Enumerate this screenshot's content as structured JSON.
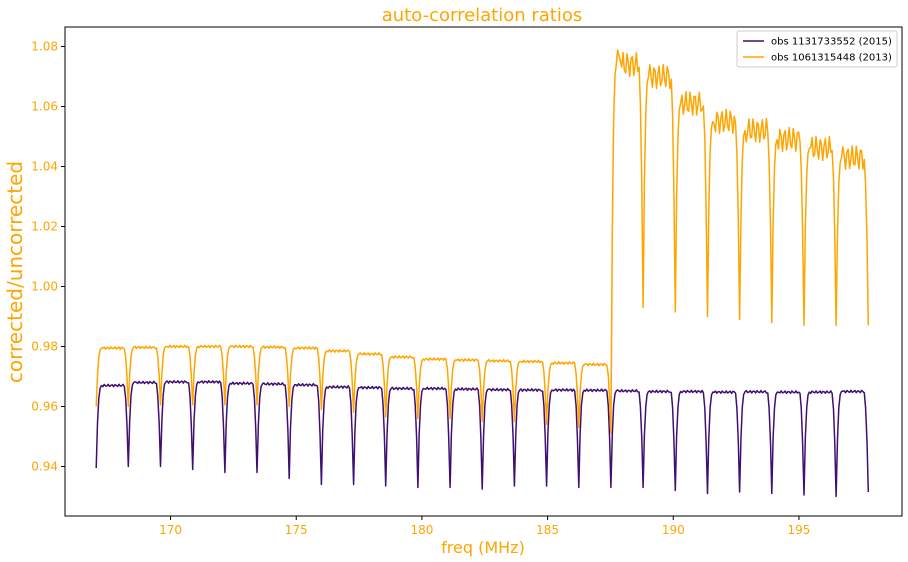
{
  "chart_data": {
    "type": "line",
    "title": "auto-correlation ratios",
    "xlabel": "freq (MHz)",
    "ylabel": "corrected/uncorrected",
    "xlim": [
      165.8,
      199.1
    ],
    "ylim": [
      0.9235,
      1.0865
    ],
    "xticks": [
      170,
      175,
      180,
      185,
      190,
      195
    ],
    "yticks": [
      0.94,
      0.96,
      0.98,
      1.0,
      1.02,
      1.04,
      1.06,
      1.08
    ],
    "ytick_labels": [
      "0.94",
      "0.96",
      "0.98",
      "1.00",
      "1.02",
      "1.04",
      "1.06",
      "1.08"
    ],
    "grid": false,
    "legend_position": "top-right",
    "colors": {
      "text": "#ffa500",
      "axes": "#000000"
    },
    "coarse_channel_width_mhz": 1.28,
    "first_coarse_channel_start_mhz": 167.04,
    "last_freq_mhz": 197.76,
    "series": [
      {
        "name": "obs 1131733552 (2015)",
        "color": "#3f0f72",
        "first_point": 0.9395,
        "channel_plateau": [
          0.967,
          0.968,
          0.9682,
          0.9682,
          0.9677,
          0.9675,
          0.9672,
          0.9665,
          0.9663,
          0.966,
          0.966,
          0.9658,
          0.9656,
          0.9655,
          0.9655,
          0.9654,
          0.9652,
          0.965,
          0.965,
          0.9648,
          0.9649,
          0.9648,
          0.9648,
          0.965
        ],
        "channel_dip": [
          0.94,
          0.94,
          0.939,
          0.938,
          0.938,
          0.936,
          0.934,
          0.934,
          0.9335,
          0.933,
          0.933,
          0.9325,
          0.9335,
          0.9335,
          0.933,
          0.933,
          0.933,
          0.932,
          0.931,
          0.9315,
          0.931,
          0.9305,
          0.93,
          0.9315
        ]
      },
      {
        "name": "obs 1061315448 (2013)",
        "color": "#ffa500",
        "first_point": 0.96,
        "channel_plateau": [
          0.9795,
          0.9797,
          0.98,
          0.98,
          0.98,
          0.9798,
          0.9795,
          0.9785,
          0.9775,
          0.9765,
          0.9758,
          0.9755,
          0.9752,
          0.975,
          0.9745,
          0.974,
          1.074,
          1.07,
          1.061,
          1.055,
          1.052,
          1.049,
          1.046,
          1.043
        ],
        "channel_dip": [
          0.96,
          0.9605,
          0.9605,
          0.9605,
          0.9605,
          0.96,
          0.959,
          0.958,
          0.9565,
          0.956,
          0.956,
          0.955,
          0.955,
          0.954,
          0.953,
          0.951,
          0.993,
          0.9915,
          0.99,
          0.989,
          0.988,
          0.987,
          0.987,
          0.987
        ],
        "jump_peak_value": 1.08
      }
    ]
  }
}
